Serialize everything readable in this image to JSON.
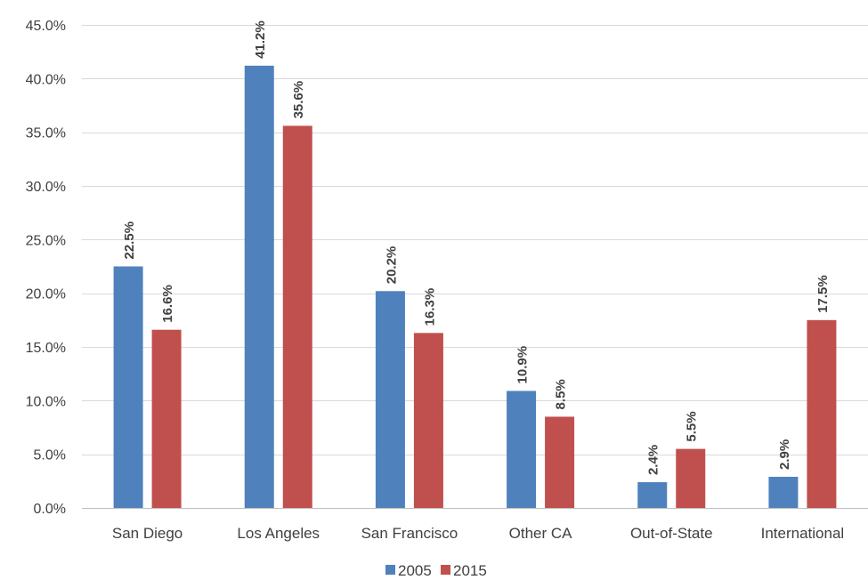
{
  "chart_data": {
    "type": "bar",
    "title": "",
    "xlabel": "",
    "ylabel": "",
    "categories": [
      "San Diego",
      "Los Angeles",
      "San Francisco",
      "Other CA",
      "Out-of-State",
      "International"
    ],
    "series": [
      {
        "name": "2005",
        "color": "#4F81BD",
        "values": [
          22.5,
          41.2,
          20.2,
          10.9,
          2.4,
          2.9
        ],
        "labels": [
          "22.5%",
          "41.2%",
          "20.2%",
          "10.9%",
          "2.4%",
          "2.9%"
        ]
      },
      {
        "name": "2015",
        "color": "#C0504D",
        "values": [
          16.6,
          35.6,
          16.3,
          8.5,
          5.5,
          17.5
        ],
        "labels": [
          "16.6%",
          "35.6%",
          "16.3%",
          "8.5%",
          "5.5%",
          "17.5%"
        ]
      }
    ],
    "ylim": [
      0,
      45
    ],
    "yticks": [
      "0.0%",
      "5.0%",
      "10.0%",
      "15.0%",
      "20.0%",
      "25.0%",
      "30.0%",
      "35.0%",
      "40.0%",
      "45.0%"
    ],
    "ytick_values": [
      0,
      5,
      10,
      15,
      20,
      25,
      30,
      35,
      40,
      45
    ],
    "grid": true,
    "legend_position": "bottom"
  }
}
